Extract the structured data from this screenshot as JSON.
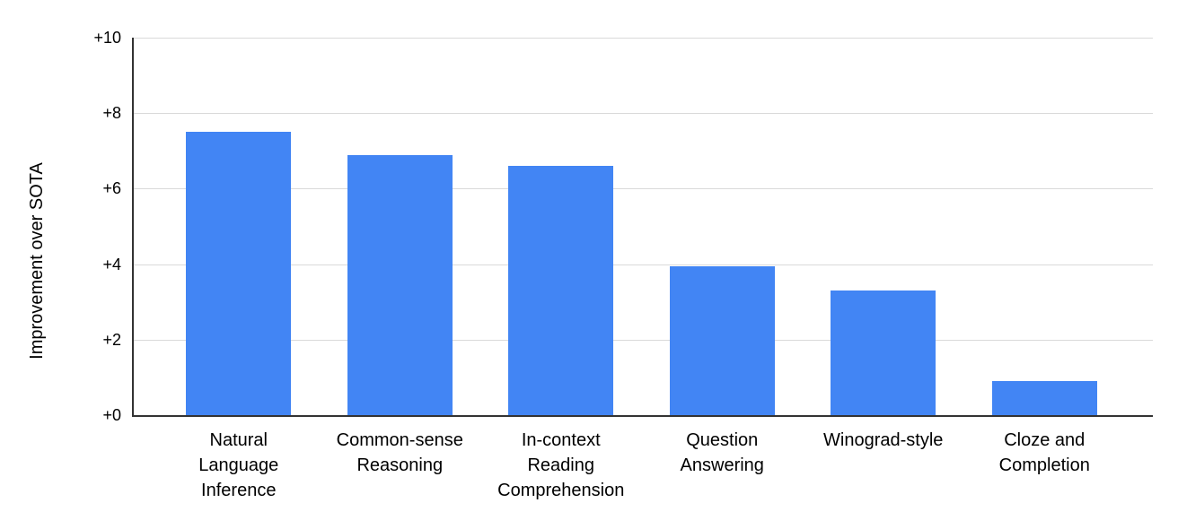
{
  "chart_data": {
    "type": "bar",
    "title": "",
    "xlabel": "",
    "ylabel": "Improvement over SOTA",
    "categories": [
      "Natural Language Inference",
      "Common-sense Reasoning",
      "In-context Reading Comprehension",
      "Question Answering",
      "Winograd-style",
      "Cloze and Completion"
    ],
    "category_lines": [
      [
        "Natural",
        "Language",
        "Inference"
      ],
      [
        "Common-sense",
        "Reasoning"
      ],
      [
        "In-context",
        "Reading",
        "Comprehension"
      ],
      [
        "Question",
        "Answering"
      ],
      [
        "Winograd-style"
      ],
      [
        "Cloze and",
        "Completion"
      ]
    ],
    "values": [
      7.5,
      6.9,
      6.6,
      3.95,
      3.3,
      0.9
    ],
    "ylim": [
      0,
      10
    ],
    "yticks": [
      {
        "value": 0,
        "label": "+0"
      },
      {
        "value": 2,
        "label": "+2"
      },
      {
        "value": 4,
        "label": "+4"
      },
      {
        "value": 6,
        "label": "+6"
      },
      {
        "value": 8,
        "label": "+8"
      },
      {
        "value": 10,
        "label": "+10"
      }
    ],
    "grid": true,
    "legend": "none",
    "colors": {
      "bar": "#4285f4",
      "gridline": "#d9d9d9",
      "axis": "#333333",
      "text": "#000000"
    }
  }
}
